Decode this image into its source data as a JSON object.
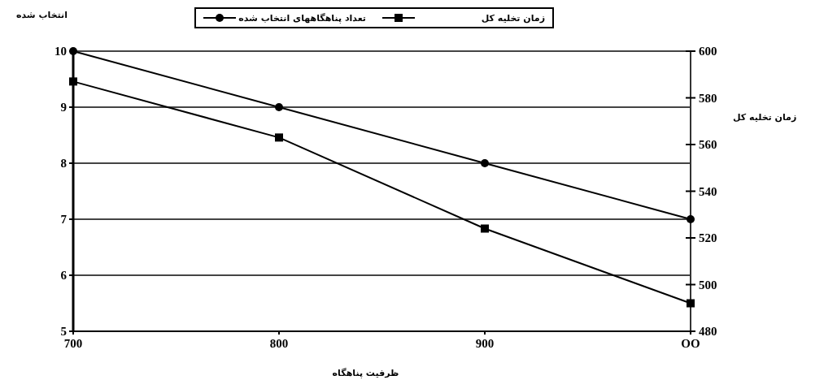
{
  "chart_data": {
    "type": "line",
    "categories": [
      "700",
      "800",
      "900",
      "OO"
    ],
    "xlabel": "ظرفیت پناهگاه",
    "ylabel": "انتخاب شده",
    "y2label": "زمان تخلیه کل",
    "ylim": [
      5,
      10
    ],
    "yticks": [
      5,
      6,
      7,
      8,
      9,
      10
    ],
    "y2lim": [
      480,
      600
    ],
    "y2ticks": [
      480,
      500,
      520,
      540,
      560,
      580,
      600
    ],
    "grid": "y",
    "legend": "top",
    "series": [
      {
        "name": "تعداد پناهگاههای انتخاب شده",
        "color": "#000000",
        "marker": "circle",
        "values": [
          10,
          9,
          8,
          7
        ]
      },
      {
        "name": "زمان تخلیه کل",
        "color": "#000000",
        "marker": "square",
        "axis": "y2",
        "values": [
          587,
          563,
          524,
          492
        ]
      }
    ]
  }
}
